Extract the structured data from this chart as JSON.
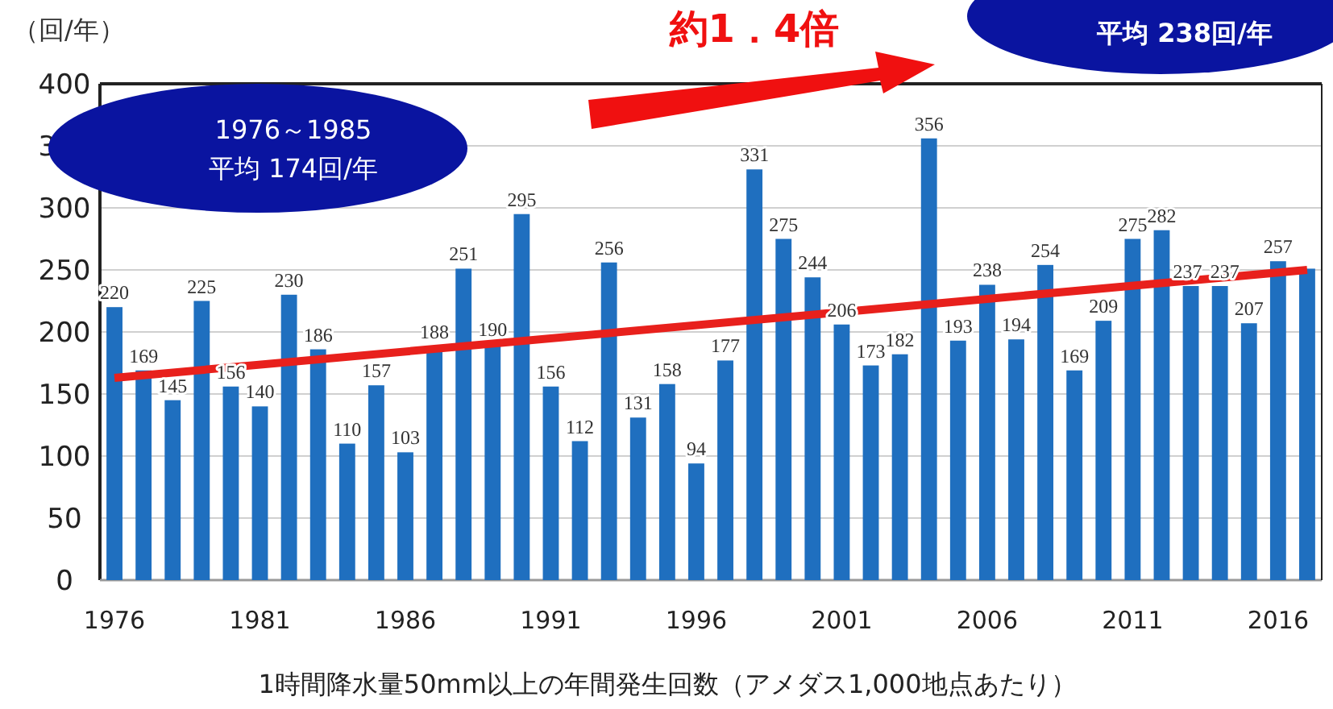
{
  "chart_data": {
    "type": "bar",
    "ylabel": "（回/年）",
    "xlabel": "1時間降水量50mm以上の年間発生回数（アメダス1,000地点あたり）",
    "x": [
      1976,
      1977,
      1978,
      1979,
      1980,
      1981,
      1982,
      1983,
      1984,
      1985,
      1986,
      1987,
      1988,
      1989,
      1990,
      1991,
      1992,
      1993,
      1994,
      1995,
      1996,
      1997,
      1998,
      1999,
      2000,
      2001,
      2002,
      2003,
      2004,
      2005,
      2006,
      2007,
      2008,
      2009,
      2010,
      2011,
      2012,
      2013,
      2014,
      2015,
      2016,
      2017
    ],
    "series": [
      {
        "color": "#1f6fbf",
        "values": [
          220,
          169,
          145,
          225,
          156,
          140,
          230,
          186,
          110,
          157,
          103,
          188,
          251,
          190,
          295,
          156,
          112,
          256,
          131,
          158,
          94,
          177,
          331,
          275,
          244,
          206,
          173,
          182,
          356,
          193,
          238,
          194,
          254,
          169,
          209,
          275,
          282,
          237,
          237,
          207,
          257,
          251
        ],
        "value_labels": [
          "220",
          "169",
          "145",
          "225",
          "156",
          "140",
          "230",
          "186",
          "110",
          "157",
          "103",
          "188",
          "251",
          "190",
          "295",
          "156",
          "112",
          "256",
          "131",
          "158",
          "94",
          "177",
          "331",
          "275",
          "244",
          "206",
          "173",
          "182",
          "356",
          "193",
          "238",
          "194",
          "254",
          "169",
          "209",
          "275",
          "282",
          "237",
          "237",
          "207",
          "257",
          null
        ]
      },
      {
        "type": "line",
        "x": [
          1976,
          2017
        ],
        "values": [
          163,
          250
        ],
        "color": "#e8201c"
      }
    ],
    "xlim": [
      1975.5,
      2017.5
    ],
    "xticks": [
      1976,
      1981,
      1986,
      1991,
      1996,
      2001,
      2006,
      2011,
      2016
    ],
    "ylim": [
      0,
      400
    ],
    "yticks": [
      0,
      50,
      100,
      150,
      200,
      250,
      300,
      350,
      400
    ],
    "grid": "y",
    "annotations": [
      "約1．4倍",
      "1976～1985",
      "平均 174回/年",
      "平均 238回/年"
    ]
  }
}
